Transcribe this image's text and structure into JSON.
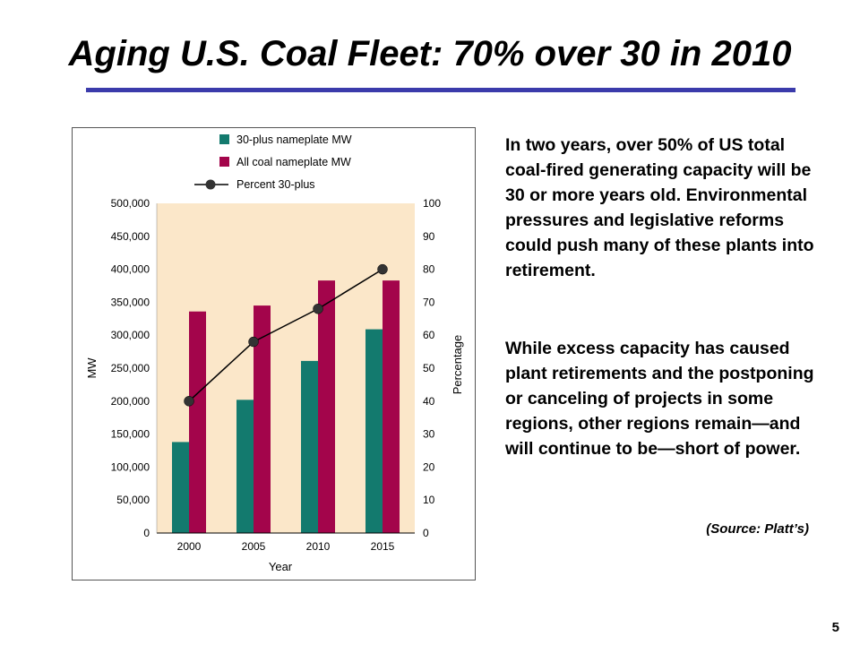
{
  "slide": {
    "title": "Aging U.S. Coal Fleet: 70% over 30 in 2010",
    "paragraph_1": "In two years, over 50% of US total coal-fired generating capacity will be 30 or more years old.  Environmental pressures and legislative reforms could push many of these plants into retirement.",
    "paragraph_2": "While excess capacity has caused plant retirements and the postponing or canceling of projects in some regions, other regions remain—and will continue to be—short of power.",
    "source": "(Source: Platt’s)",
    "page_number": "5",
    "colors": {
      "title_rule": "#3b3bab"
    }
  },
  "chart_data": {
    "type": "bar",
    "categories": [
      "2000",
      "2005",
      "2010",
      "2015"
    ],
    "series": [
      {
        "name": "30-plus nameplate MW",
        "type": "bar",
        "axis": "left",
        "color": "#137a6e",
        "values": [
          138000,
          202000,
          261000,
          309000
        ]
      },
      {
        "name": "All coal nameplate MW",
        "type": "bar",
        "axis": "left",
        "color": "#a3054b",
        "values": [
          336000,
          345000,
          383000,
          383000
        ]
      },
      {
        "name": "Percent 30-plus",
        "type": "line",
        "axis": "right",
        "color": "#000000",
        "values": [
          40,
          58,
          68,
          80
        ]
      }
    ],
    "xlabel": "Year",
    "ylabel": "MW",
    "y2label": "Percentage",
    "ylim": [
      0,
      500000
    ],
    "y2lim": [
      0,
      100
    ],
    "yticks": [
      "0",
      "50,000",
      "100,000",
      "150,000",
      "200,000",
      "250,000",
      "300,000",
      "350,000",
      "400,000",
      "450,000",
      "500,000"
    ],
    "y2ticks": [
      "0",
      "10",
      "20",
      "30",
      "40",
      "50",
      "60",
      "70",
      "80",
      "90",
      "100"
    ],
    "plot_background": "#fbe7c9",
    "grid": false,
    "legend_position": "top"
  }
}
